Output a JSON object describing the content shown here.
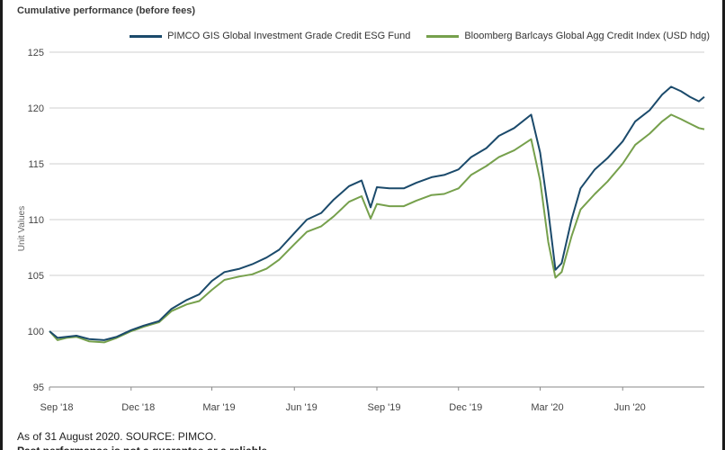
{
  "chart_data": {
    "type": "line",
    "title": "Cumulative performance (before fees)",
    "ylabel": "Unit Values",
    "xlabel": "",
    "ylim": [
      95,
      125
    ],
    "yticks": [
      95,
      100,
      105,
      110,
      115,
      120,
      125
    ],
    "xlim": [
      "2018-09-01",
      "2020-08-31"
    ],
    "xticks": [
      {
        "date": "2018-09-01",
        "label": "Sep '18"
      },
      {
        "date": "2018-12-01",
        "label": "Dec '18"
      },
      {
        "date": "2019-03-01",
        "label": "Mar '19"
      },
      {
        "date": "2019-06-01",
        "label": "Jun '19"
      },
      {
        "date": "2019-09-01",
        "label": "Sep '19"
      },
      {
        "date": "2019-12-01",
        "label": "Dec '19"
      },
      {
        "date": "2020-03-01",
        "label": "Mar '20"
      },
      {
        "date": "2020-06-01",
        "label": "Jun '20"
      }
    ],
    "grid": "horizontal",
    "legend_position": "top-right",
    "series": [
      {
        "name": "PIMCO GIS Global Investment Grade Credit ESG Fund",
        "color": "#1b4a6b",
        "points": [
          [
            "2018-09-01",
            100.0
          ],
          [
            "2018-09-10",
            99.4
          ],
          [
            "2018-09-20",
            99.5
          ],
          [
            "2018-10-01",
            99.6
          ],
          [
            "2018-10-15",
            99.3
          ],
          [
            "2018-11-01",
            99.2
          ],
          [
            "2018-11-15",
            99.5
          ],
          [
            "2018-12-01",
            100.1
          ],
          [
            "2018-12-15",
            100.5
          ],
          [
            "2019-01-01",
            100.9
          ],
          [
            "2019-01-15",
            102.0
          ],
          [
            "2019-02-01",
            102.8
          ],
          [
            "2019-02-15",
            103.3
          ],
          [
            "2019-03-01",
            104.5
          ],
          [
            "2019-03-15",
            105.3
          ],
          [
            "2019-04-01",
            105.6
          ],
          [
            "2019-04-15",
            106.0
          ],
          [
            "2019-05-01",
            106.6
          ],
          [
            "2019-05-15",
            107.3
          ],
          [
            "2019-06-01",
            108.8
          ],
          [
            "2019-06-15",
            110.0
          ],
          [
            "2019-07-01",
            110.6
          ],
          [
            "2019-07-15",
            111.8
          ],
          [
            "2019-08-01",
            113.0
          ],
          [
            "2019-08-15",
            113.5
          ],
          [
            "2019-08-25",
            111.1
          ],
          [
            "2019-09-01",
            112.9
          ],
          [
            "2019-09-15",
            112.8
          ],
          [
            "2019-10-01",
            112.8
          ],
          [
            "2019-10-15",
            113.3
          ],
          [
            "2019-11-01",
            113.8
          ],
          [
            "2019-11-15",
            114.0
          ],
          [
            "2019-12-01",
            114.5
          ],
          [
            "2019-12-15",
            115.6
          ],
          [
            "2020-01-01",
            116.4
          ],
          [
            "2020-01-15",
            117.5
          ],
          [
            "2020-02-01",
            118.2
          ],
          [
            "2020-02-20",
            119.4
          ],
          [
            "2020-03-01",
            116.0
          ],
          [
            "2020-03-10",
            110.8
          ],
          [
            "2020-03-18",
            105.5
          ],
          [
            "2020-03-25",
            106.1
          ],
          [
            "2020-04-05",
            110.0
          ],
          [
            "2020-04-15",
            112.8
          ],
          [
            "2020-05-01",
            114.5
          ],
          [
            "2020-05-15",
            115.5
          ],
          [
            "2020-06-01",
            117.0
          ],
          [
            "2020-06-15",
            118.8
          ],
          [
            "2020-07-01",
            119.8
          ],
          [
            "2020-07-15",
            121.2
          ],
          [
            "2020-07-25",
            121.9
          ],
          [
            "2020-08-05",
            121.5
          ],
          [
            "2020-08-15",
            121.0
          ],
          [
            "2020-08-25",
            120.6
          ],
          [
            "2020-08-31",
            121.0
          ]
        ]
      },
      {
        "name": "Bloomberg Barlcays Global Agg Credit Index (USD hdg)",
        "color": "#76a04c",
        "points": [
          [
            "2018-09-01",
            100.0
          ],
          [
            "2018-09-10",
            99.2
          ],
          [
            "2018-09-20",
            99.4
          ],
          [
            "2018-10-01",
            99.5
          ],
          [
            "2018-10-15",
            99.1
          ],
          [
            "2018-11-01",
            99.0
          ],
          [
            "2018-11-15",
            99.4
          ],
          [
            "2018-12-01",
            100.0
          ],
          [
            "2018-12-15",
            100.4
          ],
          [
            "2019-01-01",
            100.8
          ],
          [
            "2019-01-15",
            101.8
          ],
          [
            "2019-02-01",
            102.4
          ],
          [
            "2019-02-15",
            102.7
          ],
          [
            "2019-03-01",
            103.7
          ],
          [
            "2019-03-15",
            104.6
          ],
          [
            "2019-04-01",
            104.9
          ],
          [
            "2019-04-15",
            105.1
          ],
          [
            "2019-05-01",
            105.6
          ],
          [
            "2019-05-15",
            106.4
          ],
          [
            "2019-06-01",
            107.8
          ],
          [
            "2019-06-15",
            108.9
          ],
          [
            "2019-07-01",
            109.4
          ],
          [
            "2019-07-15",
            110.3
          ],
          [
            "2019-08-01",
            111.6
          ],
          [
            "2019-08-15",
            112.1
          ],
          [
            "2019-08-25",
            110.1
          ],
          [
            "2019-09-01",
            111.4
          ],
          [
            "2019-09-15",
            111.2
          ],
          [
            "2019-10-01",
            111.2
          ],
          [
            "2019-10-15",
            111.7
          ],
          [
            "2019-11-01",
            112.2
          ],
          [
            "2019-11-15",
            112.3
          ],
          [
            "2019-12-01",
            112.8
          ],
          [
            "2019-12-15",
            114.0
          ],
          [
            "2020-01-01",
            114.8
          ],
          [
            "2020-01-15",
            115.6
          ],
          [
            "2020-02-01",
            116.2
          ],
          [
            "2020-02-20",
            117.2
          ],
          [
            "2020-03-01",
            113.5
          ],
          [
            "2020-03-10",
            108.0
          ],
          [
            "2020-03-18",
            104.8
          ],
          [
            "2020-03-25",
            105.3
          ],
          [
            "2020-04-05",
            108.5
          ],
          [
            "2020-04-15",
            110.9
          ],
          [
            "2020-05-01",
            112.3
          ],
          [
            "2020-05-15",
            113.4
          ],
          [
            "2020-06-01",
            115.0
          ],
          [
            "2020-06-15",
            116.7
          ],
          [
            "2020-07-01",
            117.7
          ],
          [
            "2020-07-15",
            118.8
          ],
          [
            "2020-07-25",
            119.4
          ],
          [
            "2020-08-05",
            119.0
          ],
          [
            "2020-08-15",
            118.6
          ],
          [
            "2020-08-25",
            118.2
          ],
          [
            "2020-08-31",
            118.1
          ]
        ]
      }
    ]
  },
  "footnote": "As of 31 August 2020. SOURCE: PIMCO.",
  "footnote_cut": "Past performance is not a guarantee or a reliable indicator"
}
